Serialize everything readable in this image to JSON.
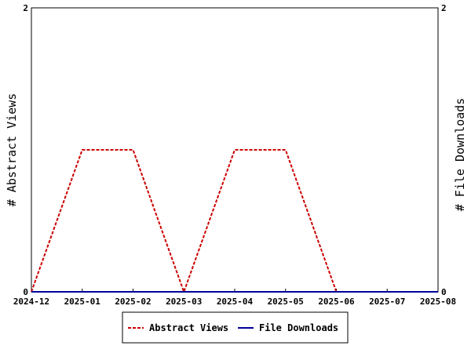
{
  "chart_data": {
    "type": "line",
    "x": [
      "2024-12",
      "2025-01",
      "2025-02",
      "2025-03",
      "2025-04",
      "2025-05",
      "2025-06",
      "2025-07",
      "2025-08"
    ],
    "series": [
      {
        "name": "Abstract Views",
        "color": "#cc0000",
        "dash": true,
        "axis": "left",
        "values": [
          0,
          1,
          1,
          0,
          1,
          1,
          0,
          0,
          0
        ]
      },
      {
        "name": "File Downloads",
        "color": "#000099",
        "dash": false,
        "axis": "right",
        "values": [
          0,
          0,
          0,
          0,
          0,
          0,
          0,
          0,
          0
        ]
      }
    ],
    "ylabel": "# Abstract Views",
    "y2label": "# File Downloads",
    "ylim": [
      0,
      2
    ],
    "y2lim": [
      0,
      2
    ],
    "yticks": [
      "0",
      "2"
    ],
    "y2ticks": [
      "0",
      "2"
    ],
    "grid": false,
    "legend_position": "bottom-center"
  }
}
